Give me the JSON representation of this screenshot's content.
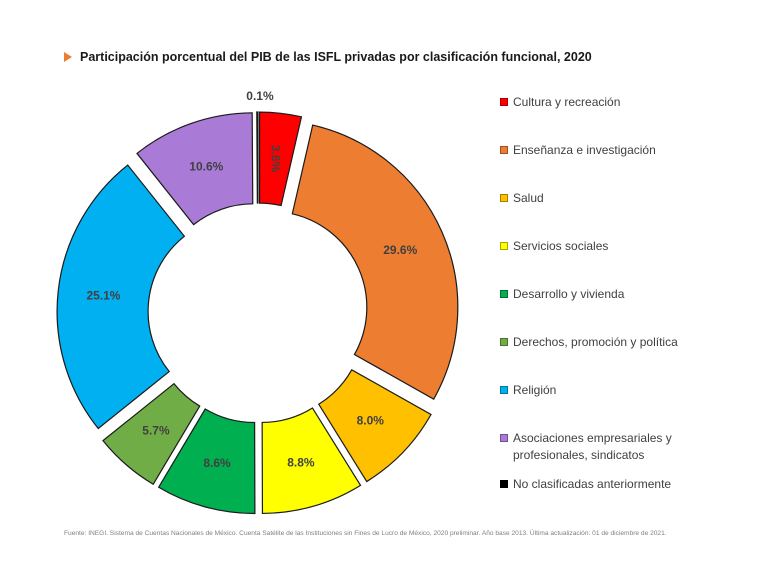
{
  "title": "Participación porcentual del PIB de las ISFL privadas por clasificación funcional, 2020",
  "source": "Fuente: INEGI. Sistema de Cuentas Nacionales de México. Cuenta Satélite de las Instituciones sin Fines de Lucro de México, 2020 preliminar. Año base 2013. Última actualización: 01 de diciembre de 2021.",
  "chart_data": {
    "type": "pie",
    "subtype": "donut, exploded",
    "title": "Participación porcentual del PIB de las ISFL privadas por clasificación funcional, 2020",
    "legend_position": "right",
    "series": [
      {
        "name": "Cultura y recreación",
        "value": 3.6,
        "label": "3.6%",
        "color": "#FF0000"
      },
      {
        "name": "Enseñanza e investigación",
        "value": 29.6,
        "label": "29.6%",
        "color": "#ED7D31"
      },
      {
        "name": "Salud",
        "value": 8.0,
        "label": "8.0%",
        "color": "#FFC000"
      },
      {
        "name": "Servicios sociales",
        "value": 8.8,
        "label": "8.8%",
        "color": "#FFFF00"
      },
      {
        "name": "Desarrollo y vivienda",
        "value": 8.6,
        "label": "8.6%",
        "color": "#00B050"
      },
      {
        "name": "Derechos, promoción y política",
        "value": 5.7,
        "label": "5.7%",
        "color": "#70AD47"
      },
      {
        "name": "Religión",
        "value": 25.1,
        "label": "25.1%",
        "color": "#00B0F0"
      },
      {
        "name": "Asociaciones empresariales y profesionales, sindicatos",
        "value": 10.6,
        "label": "10.6%",
        "color": "#A97BD6"
      },
      {
        "name": "No clasificadas anteriormente",
        "value": 0.1,
        "label": "0.1%",
        "color": "#000000"
      }
    ]
  }
}
